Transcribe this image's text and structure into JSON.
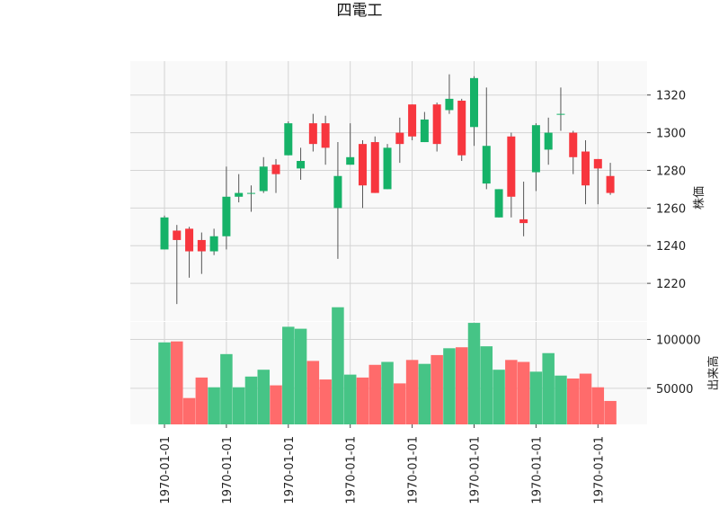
{
  "chart_data": {
    "type": "candlestick",
    "title": "四電工",
    "price_panel": {
      "ylabel": "株価",
      "ylim": [
        1200,
        1338
      ],
      "yticks": [
        1220,
        1240,
        1260,
        1280,
        1300,
        1320
      ],
      "grid": true
    },
    "volume_panel": {
      "ylabel": "出来高",
      "ylim": [
        13000,
        118000
      ],
      "yticks": [
        50000,
        100000
      ],
      "grid": true
    },
    "x_tick_labels": [
      "1970-01-01",
      "1970-01-01",
      "1970-01-01",
      "1970-01-01",
      "1970-01-01",
      "1970-01-01",
      "1970-01-01",
      "1970-01-01"
    ],
    "colors": {
      "up": "#16b268",
      "down": "#f7363e",
      "wick": "#555555",
      "up_volume": "#46c486",
      "down_volume": "#ff6b6b",
      "panel_bg": "#f9f9f9",
      "grid": "#d4d4d4"
    },
    "candles": [
      {
        "open": 1238,
        "high": 1256,
        "low": 1238,
        "close": 1255,
        "volume": 97000
      },
      {
        "open": 1248,
        "high": 1251,
        "low": 1209,
        "close": 1243,
        "volume": 98000
      },
      {
        "open": 1249,
        "high": 1250,
        "low": 1223,
        "close": 1237,
        "volume": 40000
      },
      {
        "open": 1243,
        "high": 1247,
        "low": 1225,
        "close": 1237,
        "volume": 61000
      },
      {
        "open": 1237,
        "high": 1249,
        "low": 1235,
        "close": 1245,
        "volume": 51000
      },
      {
        "open": 1245,
        "high": 1282,
        "low": 1238,
        "close": 1266,
        "volume": 85000
      },
      {
        "open": 1266,
        "high": 1278,
        "low": 1263,
        "close": 1268,
        "volume": 51000
      },
      {
        "open": 1268,
        "high": 1272,
        "low": 1258,
        "close": 1268,
        "volume": 62000
      },
      {
        "open": 1269,
        "high": 1287,
        "low": 1268,
        "close": 1282,
        "volume": 69000
      },
      {
        "open": 1283,
        "high": 1286,
        "low": 1268,
        "close": 1278,
        "volume": 53000
      },
      {
        "open": 1288,
        "high": 1306,
        "low": 1288,
        "close": 1305,
        "volume": 113000
      },
      {
        "open": 1281,
        "high": 1292,
        "low": 1275,
        "close": 1285,
        "volume": 111000
      },
      {
        "open": 1305,
        "high": 1310,
        "low": 1290,
        "close": 1294,
        "volume": 78000
      },
      {
        "open": 1305,
        "high": 1309,
        "low": 1283,
        "close": 1292,
        "volume": 59000
      },
      {
        "open": 1260,
        "high": 1295,
        "low": 1233,
        "close": 1277,
        "volume": 133000
      },
      {
        "open": 1283,
        "high": 1305,
        "low": 1283,
        "close": 1287,
        "volume": 64000
      },
      {
        "open": 1294,
        "high": 1296,
        "low": 1260,
        "close": 1272,
        "volume": 61000
      },
      {
        "open": 1295,
        "high": 1298,
        "low": 1268,
        "close": 1268,
        "volume": 74000
      },
      {
        "open": 1270,
        "high": 1294,
        "low": 1270,
        "close": 1292,
        "volume": 77000
      },
      {
        "open": 1300,
        "high": 1308,
        "low": 1284,
        "close": 1294,
        "volume": 55000
      },
      {
        "open": 1315,
        "high": 1315,
        "low": 1296,
        "close": 1298,
        "volume": 79000
      },
      {
        "open": 1295,
        "high": 1311,
        "low": 1295,
        "close": 1307,
        "volume": 75000
      },
      {
        "open": 1315,
        "high": 1316,
        "low": 1290,
        "close": 1294,
        "volume": 84000
      },
      {
        "open": 1312,
        "high": 1331,
        "low": 1310,
        "close": 1318,
        "volume": 91000
      },
      {
        "open": 1317,
        "high": 1318,
        "low": 1285,
        "close": 1288,
        "volume": 92000
      },
      {
        "open": 1303,
        "high": 1330,
        "low": 1293,
        "close": 1329,
        "volume": 117000
      },
      {
        "open": 1273,
        "high": 1324,
        "low": 1270,
        "close": 1293,
        "volume": 93000
      },
      {
        "open": 1255,
        "high": 1270,
        "low": 1255,
        "close": 1270,
        "volume": 69000
      },
      {
        "open": 1298,
        "high": 1300,
        "low": 1255,
        "close": 1266,
        "volume": 79000
      },
      {
        "open": 1254,
        "high": 1274,
        "low": 1245,
        "close": 1252,
        "volume": 77000
      },
      {
        "open": 1279,
        "high": 1305,
        "low": 1269,
        "close": 1304,
        "volume": 67000
      },
      {
        "open": 1291,
        "high": 1308,
        "low": 1283,
        "close": 1300,
        "volume": 86000
      },
      {
        "open": 1310,
        "high": 1324,
        "low": 1301,
        "close": 1310,
        "volume": 63000
      },
      {
        "open": 1300,
        "high": 1301,
        "low": 1278,
        "close": 1287,
        "volume": 60000
      },
      {
        "open": 1290,
        "high": 1296,
        "low": 1262,
        "close": 1272,
        "volume": 65000
      },
      {
        "open": 1286,
        "high": 1286,
        "low": 1262,
        "close": 1281,
        "volume": 51000
      },
      {
        "open": 1277,
        "high": 1284,
        "low": 1267,
        "close": 1268,
        "volume": 37000
      }
    ]
  }
}
